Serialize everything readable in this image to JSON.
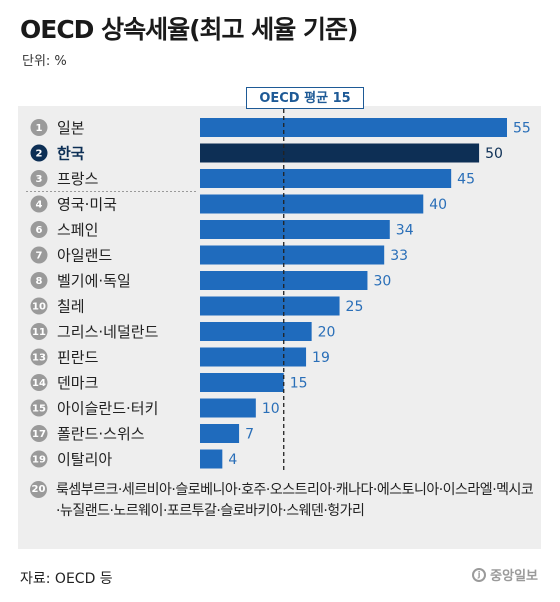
{
  "title": "OECD 상속세율(최고 세율 기준)",
  "unit": "단위: %",
  "source": "자료: OECD 등",
  "logo": "중앙일보",
  "colors": {
    "bar": "#1f6bbd",
    "highlight": "#0d2f55",
    "panel": "#eeeeee",
    "rank_circle": "#9a9a9a"
  },
  "chart_data": {
    "type": "bar",
    "orientation": "horizontal",
    "average_line": {
      "label": "OECD 평균 15",
      "value": 15
    },
    "categories": [
      "일본",
      "한국",
      "프랑스",
      "영국·미국",
      "스페인",
      "아일랜드",
      "벨기에·독일",
      "칠레",
      "그리스·네덜란드",
      "핀란드",
      "덴마크",
      "아이슬란드·터키",
      "폴란드·스위스",
      "이탈리아"
    ],
    "ranks": [
      "1",
      "2",
      "3",
      "4",
      "6",
      "7",
      "8",
      "10",
      "11",
      "13",
      "14",
      "15",
      "17",
      "19"
    ],
    "values": [
      55,
      50,
      45,
      40,
      34,
      33,
      30,
      25,
      20,
      19,
      15,
      10,
      7,
      4
    ],
    "highlight": "한국",
    "xlim": [
      0,
      55
    ],
    "zero_tax_rank": "20",
    "zero_tax_countries": "룩셈부르크·세르비아·슬로베니아·호주·오스트리아·캐나다·에스토니아·이스라엘·멕시코·뉴질랜드·노르웨이·포르투갈·슬로바키아·스웨덴·헝가리"
  }
}
